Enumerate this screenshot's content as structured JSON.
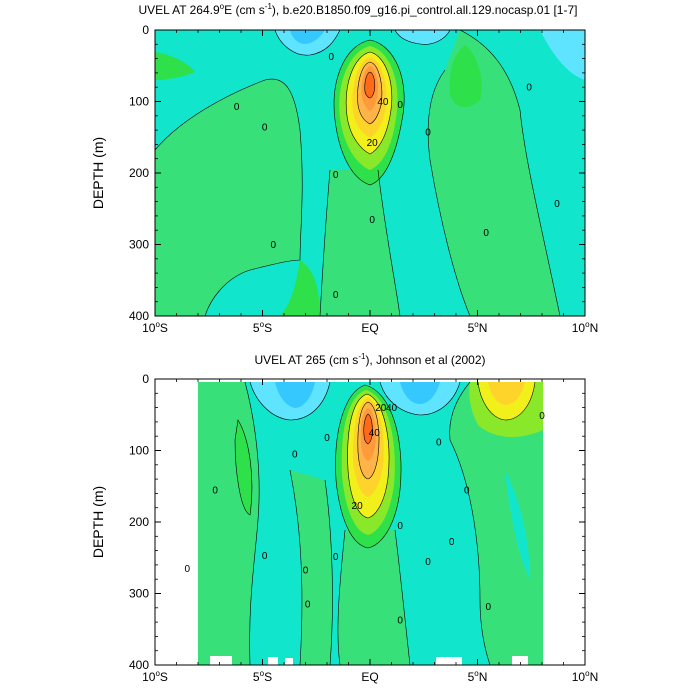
{
  "colors": {
    "c_m10": "#34c8ff",
    "c_m5": "#5fe4ff",
    "c_0": "#11e6cc",
    "c_0b": "#2cd6a9",
    "c_5": "#38e07a",
    "c_10": "#2ee04a",
    "c_15": "#8ae82a",
    "c_20": "#f2f01a",
    "c_25": "#ffd42a",
    "c_30": "#ffb449",
    "c_35": "#ff9a3a",
    "c_40": "#ff6a19"
  },
  "chart_data": [
    {
      "type": "heatmap",
      "title_main": "UVEL AT 264.9",
      "title_deg": "o",
      "title_rest_1": "E (cm s",
      "title_sup": "-1",
      "title_rest_2": "), b.e20.B1850.f09_g16.pi_control.all.129.nocasp.01 [1-7]",
      "ylabel": "DEPTH (m)",
      "x_ticks": [
        {
          "value": -10,
          "num": "10",
          "deg": "o",
          "hemi": "S"
        },
        {
          "value": -5,
          "num": "5",
          "deg": "o",
          "hemi": "S"
        },
        {
          "value": 0,
          "num": "EQ",
          "deg": "",
          "hemi": ""
        },
        {
          "value": 5,
          "num": "5",
          "deg": "o",
          "hemi": "N"
        },
        {
          "value": 10,
          "num": "10",
          "deg": "o",
          "hemi": "N"
        }
      ],
      "y_ticks": [
        0,
        100,
        200,
        300,
        400
      ],
      "xlim": [
        -10,
        10
      ],
      "ylim": [
        0,
        400
      ],
      "y_reversed": true,
      "contour_labels": [
        {
          "text": "0",
          "lat": -1.8,
          "depth": 37
        },
        {
          "text": "0",
          "lat": -6.2,
          "depth": 107
        },
        {
          "text": "0",
          "lat": -4.9,
          "depth": 136
        },
        {
          "text": "0",
          "lat": -1.6,
          "depth": 202
        },
        {
          "text": "0",
          "lat": 0.1,
          "depth": 265
        },
        {
          "text": "0",
          "lat": -4.5,
          "depth": 300
        },
        {
          "text": "0",
          "lat": -1.6,
          "depth": 370
        },
        {
          "text": "0",
          "lat": 1.4,
          "depth": 104
        },
        {
          "text": "0",
          "lat": 2.7,
          "depth": 143
        },
        {
          "text": "0",
          "lat": 5.4,
          "depth": 283
        },
        {
          "text": "0",
          "lat": 7.4,
          "depth": 80
        },
        {
          "text": "0",
          "lat": 8.7,
          "depth": 243
        },
        {
          "text": "40",
          "lat": 0.6,
          "depth": 100
        },
        {
          "text": "20",
          "lat": 0.1,
          "depth": 157
        }
      ]
    },
    {
      "type": "heatmap",
      "title_main": "UVEL AT 265 (cm s",
      "title_sup": "-1",
      "title_rest": "), Johnson et al (2002)",
      "ylabel": "DEPTH (m)",
      "x_ticks": [
        {
          "value": -10,
          "num": "10",
          "deg": "o",
          "hemi": "S"
        },
        {
          "value": -5,
          "num": "5",
          "deg": "o",
          "hemi": "S"
        },
        {
          "value": 0,
          "num": "EQ",
          "deg": "",
          "hemi": ""
        },
        {
          "value": 5,
          "num": "5",
          "deg": "o",
          "hemi": "N"
        },
        {
          "value": 10,
          "num": "10",
          "deg": "o",
          "hemi": "N"
        }
      ],
      "y_ticks": [
        0,
        100,
        200,
        300,
        400
      ],
      "xlim": [
        -10,
        10
      ],
      "ylim": [
        0,
        400
      ],
      "y_reversed": true,
      "data_lat_range": [
        -8,
        8
      ],
      "contour_labels": [
        {
          "text": "0",
          "lat": -2.0,
          "depth": 82
        },
        {
          "text": "0",
          "lat": -3.5,
          "depth": 105
        },
        {
          "text": "0",
          "lat": -7.2,
          "depth": 155
        },
        {
          "text": "0",
          "lat": -4.9,
          "depth": 247
        },
        {
          "text": "0",
          "lat": -8.5,
          "depth": 265
        },
        {
          "text": "0",
          "lat": -3.0,
          "depth": 267
        },
        {
          "text": "0",
          "lat": -2.9,
          "depth": 315
        },
        {
          "text": "0",
          "lat": -1.6,
          "depth": 248
        },
        {
          "text": "0",
          "lat": 1.4,
          "depth": 205
        },
        {
          "text": "0",
          "lat": 2.7,
          "depth": 255
        },
        {
          "text": "0",
          "lat": 1.4,
          "depth": 337
        },
        {
          "text": "0",
          "lat": 3.2,
          "depth": 88
        },
        {
          "text": "0",
          "lat": 4.5,
          "depth": 155
        },
        {
          "text": "0",
          "lat": 3.8,
          "depth": 227
        },
        {
          "text": "0",
          "lat": 5.5,
          "depth": 318
        },
        {
          "text": "0",
          "lat": 8.0,
          "depth": 51
        },
        {
          "text": "20",
          "lat": 0.5,
          "depth": 40
        },
        {
          "text": "40",
          "lat": 0.2,
          "depth": 75
        },
        {
          "text": "40",
          "lat": 1.0,
          "depth": 40
        },
        {
          "text": "20",
          "lat": -0.6,
          "depth": 177
        }
      ]
    }
  ]
}
